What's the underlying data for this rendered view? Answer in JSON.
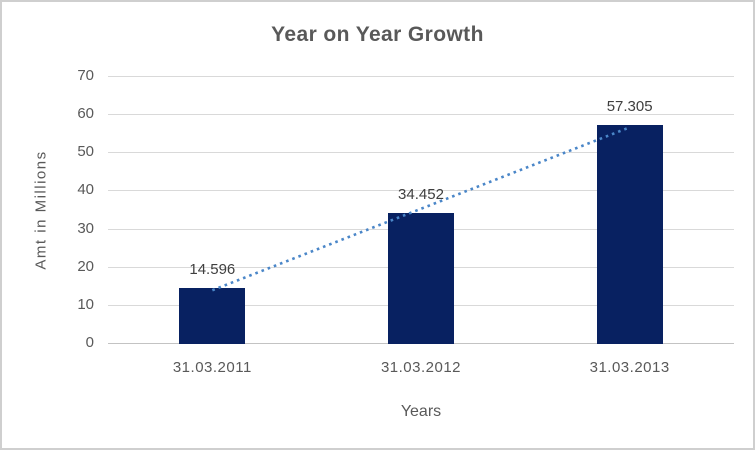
{
  "window": {
    "background": "#ffffff",
    "border_color": "#cfcfcf"
  },
  "chart_data": {
    "type": "bar",
    "title": "Year on Year Growth",
    "categories": [
      "31.03.2011",
      "31.03.2012",
      "31.03.2013"
    ],
    "values": [
      14.596,
      34.452,
      57.305
    ],
    "data_labels": [
      "14.596",
      "34.452",
      "57.305"
    ],
    "xlabel": "Years",
    "ylabel": "Amt in Millions",
    "ylim": [
      0,
      70
    ],
    "ytick_step": 10,
    "yticks": [
      0,
      10,
      20,
      30,
      40,
      50,
      60,
      70
    ],
    "grid": "horizontal",
    "legend_position": "none",
    "trendline": {
      "type": "linear",
      "style": "dotted",
      "color": "#4a86c8"
    },
    "colors": {
      "bar": "#082161",
      "gridline": "#d9d9d9",
      "axis_line": "#c3c3c3",
      "title_text": "#595959",
      "axis_text": "#595959",
      "label_text": "#3f3f3f"
    }
  }
}
